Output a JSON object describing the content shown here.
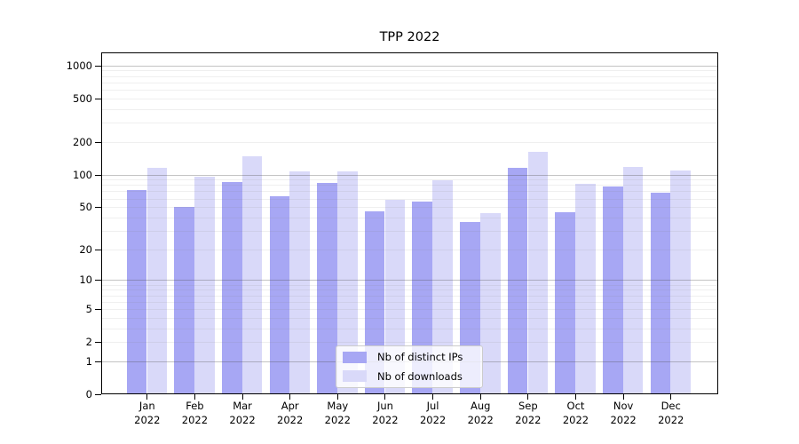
{
  "chart_data": {
    "type": "bar",
    "title": "TPP 2022",
    "categories": [
      "Jan",
      "Feb",
      "Mar",
      "Apr",
      "May",
      "Jun",
      "Jul",
      "Aug",
      "Sep",
      "Oct",
      "Nov",
      "Dec"
    ],
    "year": "2022",
    "series": [
      {
        "name": "Nb of distinct IPs",
        "color": "#a7a7f4",
        "values": [
          72,
          50,
          85,
          63,
          83,
          46,
          56,
          36,
          116,
          45,
          78,
          68
        ]
      },
      {
        "name": "Nb of downloads",
        "color": "#d9d9f9",
        "values": [
          116,
          96,
          146,
          106,
          107,
          58,
          88,
          44,
          162,
          82,
          117,
          108
        ]
      }
    ],
    "y_scale": "log1p",
    "y_ticks": [
      0,
      1,
      2,
      5,
      10,
      20,
      50,
      100,
      200,
      500,
      1000
    ],
    "y_tick_labels": [
      "0",
      "1",
      "2",
      "5",
      "10",
      "20",
      "50",
      "100",
      "200",
      "500",
      "1000"
    ],
    "major_grid_values": [
      1,
      10,
      100,
      1000
    ],
    "minor_grid_values": [
      2,
      3,
      4,
      5,
      6,
      7,
      8,
      9,
      20,
      30,
      40,
      50,
      60,
      70,
      80,
      90,
      200,
      300,
      400,
      500,
      600,
      700,
      800,
      900
    ],
    "ylim": [
      0,
      1300
    ],
    "grid": true,
    "legend_position": "lower center",
    "axis_color": "#000000",
    "major_grid_color": "#b4b4b4",
    "minor_grid_color": "#e5e5e5"
  }
}
